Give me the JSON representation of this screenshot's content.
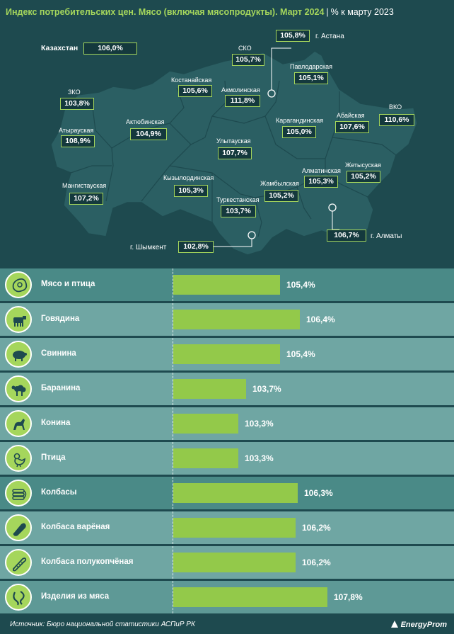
{
  "header": {
    "title": "Индекс потребительских цен. Мясо (включая мясопродукты). Март 2024",
    "subtitle": "% к марту 2023"
  },
  "map": {
    "country": {
      "label": "Казахстан",
      "value": "106,0%"
    },
    "regions": [
      {
        "name": "г. Астана",
        "value": "105,8%"
      },
      {
        "name": "СКО",
        "value": "105,7%"
      },
      {
        "name": "Павлодарская",
        "value": "105,1%"
      },
      {
        "name": "Костанайская",
        "value": "105,6%"
      },
      {
        "name": "Акмолинская",
        "value": "111,8%"
      },
      {
        "name": "ЗКО",
        "value": "103,8%"
      },
      {
        "name": "Абайская",
        "value": "107,6%"
      },
      {
        "name": "ВКО",
        "value": "110,6%"
      },
      {
        "name": "Атырауская",
        "value": "108,9%"
      },
      {
        "name": "Актюбинская",
        "value": "104,9%"
      },
      {
        "name": "Карагандинская",
        "value": "105,0%"
      },
      {
        "name": "Улытауская",
        "value": "107,7%"
      },
      {
        "name": "Жетысуская",
        "value": "105,2%"
      },
      {
        "name": "Кызылординская",
        "value": "105,3%"
      },
      {
        "name": "Алматинская",
        "value": "105,3%"
      },
      {
        "name": "Мангистауская",
        "value": "107,2%"
      },
      {
        "name": "Жамбылская",
        "value": "105,2%"
      },
      {
        "name": "Туркестанская",
        "value": "103,7%"
      },
      {
        "name": "г. Алматы",
        "value": "106,7%"
      },
      {
        "name": "г. Шымкент",
        "value": "102,8%"
      }
    ]
  },
  "chart_data": {
    "type": "bar",
    "categories": [
      "Мясо и птица",
      "Говядина",
      "Свинина",
      "Баранина",
      "Конина",
      "Птица",
      "Колбасы",
      "Колбаса варёная",
      "Колбаса полукопчёная",
      "Изделия из мяса"
    ],
    "values": [
      105.4,
      106.4,
      105.4,
      103.7,
      103.3,
      103.3,
      106.3,
      106.2,
      106.2,
      107.8
    ],
    "labels": [
      "105,4%",
      "106,4%",
      "105,4%",
      "103,7%",
      "103,3%",
      "103,3%",
      "106,3%",
      "106,2%",
      "106,2%",
      "107,8%"
    ],
    "title": "",
    "xlabel": "",
    "ylabel": "",
    "orientation": "horizontal",
    "bar_color": "#93c94a"
  },
  "rows_icons": [
    "meat-icon",
    "cow-icon",
    "pig-icon",
    "sheep-icon",
    "horse-icon",
    "chicken-icon",
    "sausages-icon",
    "boiled-sausage-icon",
    "smoked-sausage-icon",
    "meat-products-icon"
  ],
  "footer": {
    "source": "Источник: Бюро национальной статистики АСПиР РК",
    "logo": "EnergyProm"
  },
  "colors": {
    "background": "#1e4a4f",
    "accent": "#a5d65c",
    "row_dark": "#4a8a87",
    "row_light": "#6fa6a3"
  }
}
